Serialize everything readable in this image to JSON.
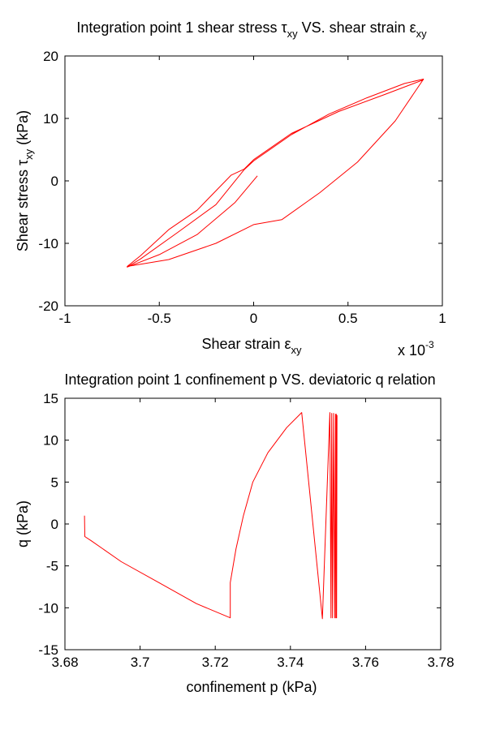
{
  "chart_data": [
    {
      "type": "line",
      "title": {
        "prefix": "Integration point 1 shear stress ",
        "sym1": "τ",
        "sub1": "xy",
        "mid": " VS. shear strain ",
        "sym2": "ε",
        "sub2": "xy"
      },
      "xlabel": {
        "prefix": "Shear strain ",
        "sym": "ε",
        "sub": "xy"
      },
      "ylabel": {
        "prefix": "Shear stress ",
        "sym": "τ",
        "sub": "xy",
        "suffix": " (kPa)"
      },
      "x_multiplier": {
        "base": "x 10",
        "exp": "-3"
      },
      "xlim": [
        -1,
        1
      ],
      "ylim": [
        -20,
        20
      ],
      "xticks": [
        -1,
        -0.5,
        0,
        0.5,
        1
      ],
      "yticks": [
        -20,
        -10,
        0,
        10,
        20
      ],
      "xtick_labels": [
        "-1",
        "-0.5",
        "0",
        "0.5",
        "1"
      ],
      "ytick_labels": [
        "-20",
        "-10",
        "0",
        "10",
        "20"
      ],
      "grid": false,
      "series_color": "#ff0000",
      "series": [
        {
          "x": [
            0.02,
            -0.1,
            -0.3,
            -0.5,
            -0.67,
            -0.6,
            -0.4,
            -0.2,
            -0.05,
            0,
            0.2,
            0.4,
            0.6,
            0.8,
            0.9,
            0.75,
            0.55,
            0.35,
            0.15,
            0,
            -0.2,
            -0.45,
            -0.67,
            -0.6,
            -0.45,
            -0.3,
            -0.12,
            -0.05,
            0,
            0.2,
            0.45,
            0.7,
            0.9
          ],
          "y": [
            0.8,
            -3.5,
            -8.6,
            -11.8,
            -13.8,
            -12.5,
            -8.2,
            -3.8,
            1.8,
            3.2,
            7.4,
            10.7,
            13.3,
            15.6,
            16.3,
            9.6,
            3.0,
            -1.9,
            -6.2,
            -7.0,
            -10.0,
            -12.6,
            -13.7,
            -12.0,
            -7.8,
            -4.7,
            0.9,
            1.9,
            3.4,
            7.6,
            11.1,
            13.9,
            16.2
          ]
        }
      ]
    },
    {
      "type": "line",
      "title": "Integration point 1 confinement p VS. deviatoric q relation",
      "xlabel": "confinement p (kPa)",
      "ylabel": "q (kPa)",
      "xlim": [
        3.68,
        3.78
      ],
      "ylim": [
        -15,
        15
      ],
      "xticks": [
        3.68,
        3.7,
        3.72,
        3.74,
        3.76,
        3.78
      ],
      "yticks": [
        -15,
        -10,
        -5,
        0,
        5,
        10,
        15
      ],
      "xtick_labels": [
        "3.68",
        "3.7",
        "3.72",
        "3.74",
        "3.76",
        "3.78"
      ],
      "ytick_labels": [
        "-15",
        "-10",
        "-5",
        "0",
        "5",
        "10",
        "15"
      ],
      "grid": false,
      "series_color": "#ff0000",
      "series": [
        {
          "x": [
            3.6852,
            3.6853,
            3.687,
            3.695,
            3.705,
            3.715,
            3.724,
            3.724,
            3.7255,
            3.7275,
            3.73,
            3.734,
            3.739,
            3.743,
            3.743,
            3.7485,
            3.7505,
            3.7508,
            3.751,
            3.7512,
            3.7515,
            3.7518,
            3.752,
            3.7521,
            3.7522,
            3.7523,
            3.7524
          ],
          "y": [
            1.0,
            -1.5,
            -2.0,
            -4.5,
            -7.0,
            -9.5,
            -11.2,
            -7.0,
            -3.0,
            1.0,
            5.0,
            8.5,
            11.5,
            13.3,
            13.3,
            -11.3,
            13.3,
            -11.2,
            13.2,
            -11.2,
            13.2,
            -11.2,
            13.1,
            -11.2,
            13.1,
            -11.2,
            13.0
          ]
        }
      ]
    }
  ]
}
